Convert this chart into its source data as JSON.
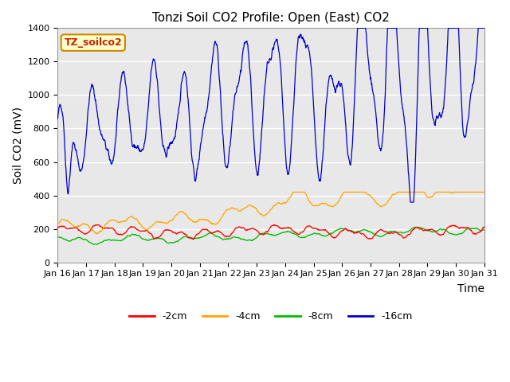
{
  "title": "Tonzi Soil CO2 Profile: Open (East) CO2",
  "ylabel": "Soil CO2 (mV)",
  "xlabel": "Time",
  "sensor_label": "TZ_soilco2",
  "ylim": [
    0,
    1400
  ],
  "yticks": [
    0,
    200,
    400,
    600,
    800,
    1000,
    1200,
    1400
  ],
  "xtick_labels": [
    "Jan 16",
    "Jan 17",
    "Jan 18",
    "Jan 19",
    "Jan 20",
    "Jan 21",
    "Jan 22",
    "Jan 23",
    "Jan 24",
    "Jan 25",
    "Jan 26",
    "Jan 27",
    "Jan 28",
    "Jan 29",
    "Jan 30",
    "Jan 31"
  ],
  "colors": {
    "m2cm": "#ff0000",
    "m4cm": "#ffa500",
    "m8cm": "#00bb00",
    "m16cm": "#0000cc"
  },
  "legend_labels": [
    "-2cm",
    "-4cm",
    "-8cm",
    "-16cm"
  ],
  "bg_color": "#ffffff",
  "plot_bg_color": "#e8e8e8",
  "grid_color": "#ffffff",
  "title_fontsize": 11,
  "label_fontsize": 10,
  "tick_fontsize": 8,
  "legend_fontsize": 9,
  "sensor_box_color": "#ffffcc",
  "sensor_box_edge": "#cc8800"
}
